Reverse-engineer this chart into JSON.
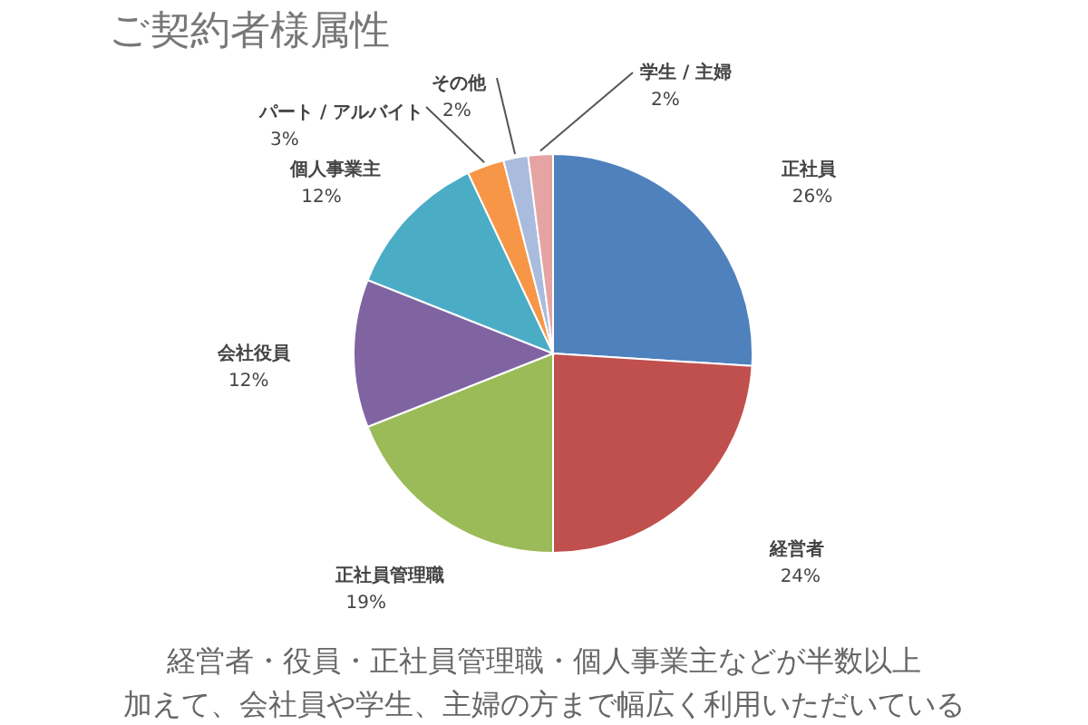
{
  "chart_data": {
    "type": "pie",
    "title": "ご契約者様属性",
    "categories": [
      "正社員",
      "経営者",
      "正社員管理職",
      "会社役員",
      "個人事業主",
      "パート / アルバイト",
      "その他",
      "学生 / 主婦"
    ],
    "values": [
      26,
      24,
      19,
      12,
      12,
      3,
      2,
      2
    ],
    "value_labels": [
      "26%",
      "24%",
      "19%",
      "12%",
      "12%",
      "3%",
      "2%",
      "2%"
    ],
    "colors": [
      "#4f81bd",
      "#c0504d",
      "#9bbb59",
      "#8064a2",
      "#4bacc6",
      "#f79646",
      "#a9bcdd",
      "#e6a3a3"
    ],
    "annotations": [
      "経営者・役員・正社員管理職・個人事業主などが半数以上",
      "加えて、会社員や学生、主婦の方まで幅広く利用いただいている"
    ]
  }
}
